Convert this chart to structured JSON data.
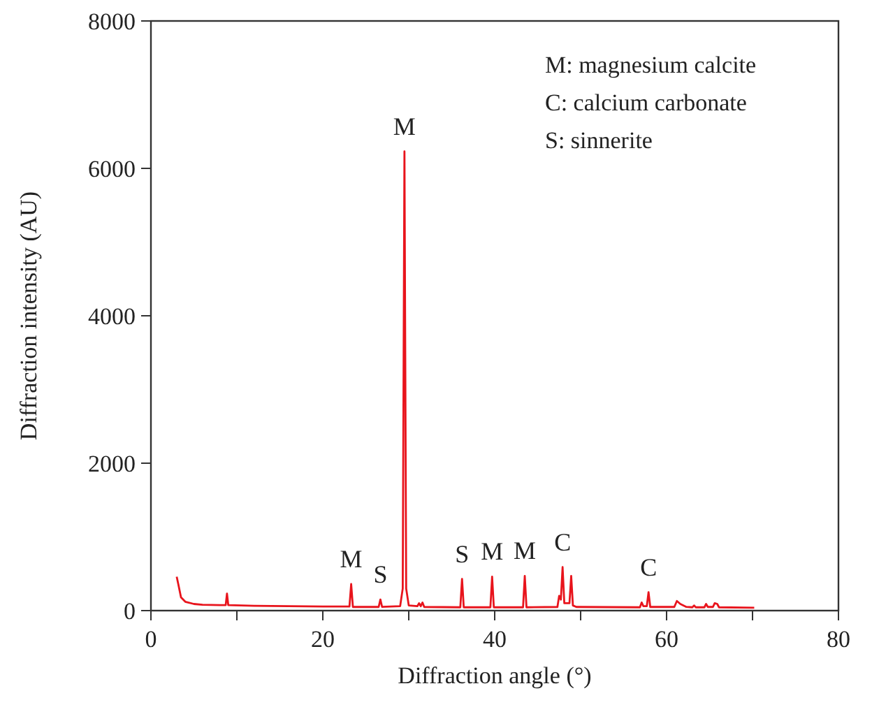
{
  "chart_data": {
    "type": "line",
    "xlabel": "Diffraction angle (°)",
    "ylabel": "Diffraction intensity (AU)",
    "xlim": [
      0,
      80
    ],
    "ylim": [
      0,
      8000
    ],
    "xticks": [
      0,
      {
        "value": 10,
        "label": null
      },
      20,
      {
        "value": 30,
        "label": null
      },
      40,
      {
        "value": 50,
        "label": null
      },
      60,
      {
        "value": 70,
        "label": null
      },
      80
    ],
    "yticks": [
      0,
      2000,
      4000,
      6000,
      8000
    ],
    "grid": false,
    "marker": "none",
    "line_style": "solid",
    "series": [
      {
        "color": "#e8141c",
        "x": [
          3.0,
          3.2,
          3.5,
          4,
          5,
          6,
          8,
          8.7,
          8.85,
          9.0,
          12,
          16,
          20,
          23.1,
          23.3,
          23.5,
          26.5,
          26.7,
          26.9,
          29.0,
          29.3,
          29.5,
          29.7,
          30.0,
          31.0,
          31.2,
          31.4,
          31.6,
          31.8,
          36.0,
          36.2,
          36.4,
          39.5,
          39.7,
          39.9,
          43.3,
          43.5,
          43.7,
          47.3,
          47.5,
          47.7,
          47.9,
          48.1,
          48.7,
          48.9,
          49.1,
          49.5,
          56.9,
          57.1,
          57.3,
          57.7,
          57.9,
          58.1,
          60.9,
          61.2,
          61.6,
          62.3,
          63.0,
          63.2,
          63.4,
          64.4,
          64.6,
          64.8,
          65.4,
          65.6,
          65.9,
          66.1,
          70.2
        ],
        "values": [
          460,
          350,
          180,
          120,
          90,
          80,
          75,
          75,
          230,
          75,
          65,
          60,
          55,
          55,
          360,
          50,
          50,
          150,
          50,
          60,
          300,
          6230,
          300,
          70,
          60,
          100,
          60,
          110,
          50,
          45,
          430,
          45,
          45,
          460,
          45,
          45,
          470,
          45,
          50,
          200,
          150,
          590,
          100,
          100,
          470,
          70,
          50,
          45,
          110,
          60,
          60,
          250,
          50,
          50,
          130,
          90,
          50,
          45,
          70,
          45,
          45,
          90,
          50,
          50,
          100,
          90,
          45,
          40
        ]
      }
    ],
    "annotations": [
      {
        "text": "M",
        "x": 23.3,
        "y": 360
      },
      {
        "text": "S",
        "x": 26.7,
        "y": 150
      },
      {
        "text": "M",
        "x": 29.5,
        "y": 6230
      },
      {
        "text": "S",
        "x": 36.2,
        "y": 430
      },
      {
        "text": "M",
        "x": 39.7,
        "y": 460
      },
      {
        "text": "M",
        "x": 43.5,
        "y": 470
      },
      {
        "text": "C",
        "x": 47.9,
        "y": 590
      },
      {
        "text": "C",
        "x": 57.9,
        "y": 250
      },
      "M: magnesium calcite",
      "C: calcium carbonate",
      "S: sinnerite"
    ]
  }
}
